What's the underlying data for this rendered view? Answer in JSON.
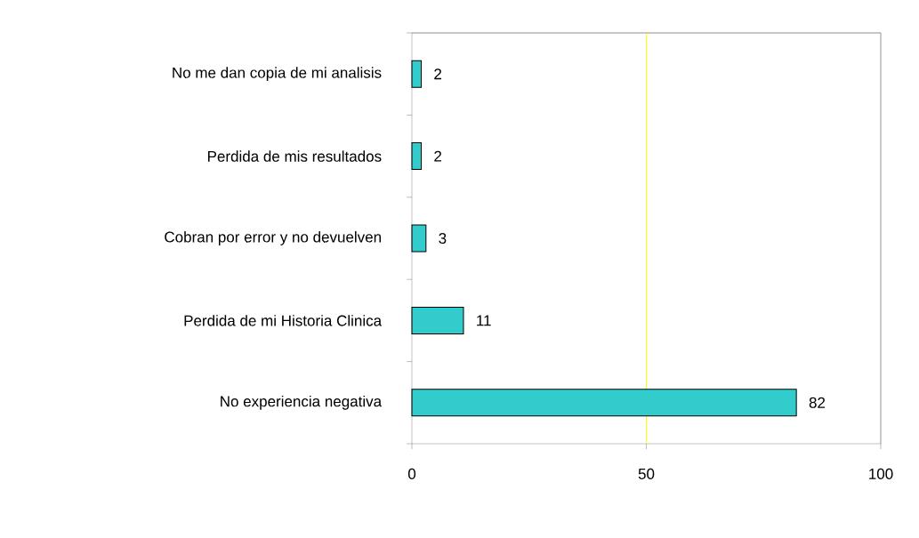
{
  "chart_data": {
    "type": "bar",
    "orientation": "horizontal",
    "categories": [
      "No me dan copia de mi analisis",
      "Perdida de mis resultados",
      "Cobran por error y no devuelven",
      "Perdida de mi Historia Clinica",
      "No experiencia negativa"
    ],
    "values": [
      2,
      2,
      3,
      11,
      82
    ],
    "color": "#33cccc",
    "xlim": [
      0,
      100
    ],
    "xticks": [
      0,
      50,
      100
    ],
    "ref_lines": [
      {
        "axis": "x",
        "value": 50,
        "color": "#ffff00"
      }
    ],
    "data_labels": true,
    "grid": false
  }
}
